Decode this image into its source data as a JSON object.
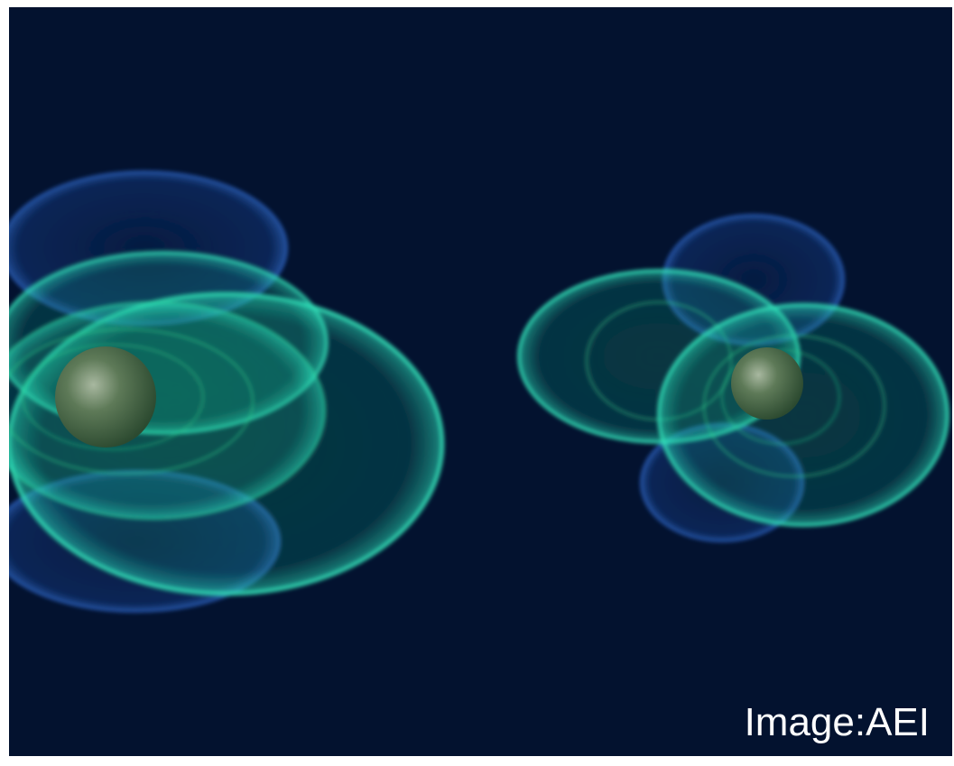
{
  "credit": "Image:AEI"
}
